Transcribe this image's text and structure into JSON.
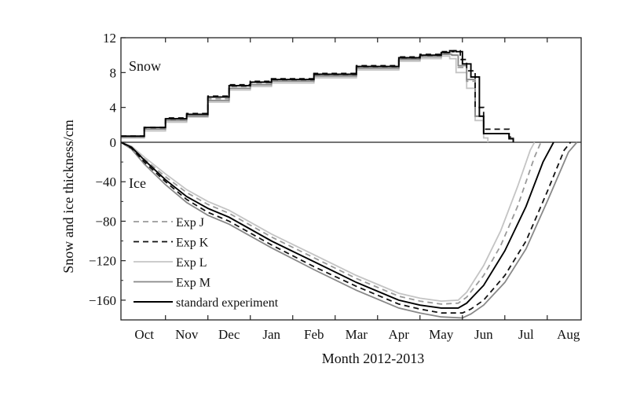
{
  "chart_data": {
    "type": "line",
    "title": "",
    "xlabel": "Month  2012-2013",
    "ylabel": "Snow and ice thickness/cm",
    "x_unit": "month index (Oct 2012 = 0, Aug 2013 = 10)",
    "xlim": [
      -0.55,
      10.3
    ],
    "ylim": [
      -180,
      12
    ],
    "x_ticks": [
      {
        "value": 0,
        "label": "Oct"
      },
      {
        "value": 1,
        "label": "Nov"
      },
      {
        "value": 2,
        "label": "Dec"
      },
      {
        "value": 3,
        "label": "Jan"
      },
      {
        "value": 4,
        "label": "Feb"
      },
      {
        "value": 5,
        "label": "Mar"
      },
      {
        "value": 6,
        "label": "Apr"
      },
      {
        "value": 7,
        "label": "May"
      },
      {
        "value": 8,
        "label": "Jun"
      },
      {
        "value": 9,
        "label": "Jul"
      },
      {
        "value": 10,
        "label": "Aug"
      }
    ],
    "y_ticks_snow": [
      0,
      4,
      8,
      12
    ],
    "y_ticks_ice": [
      -40,
      -80,
      -120,
      -160
    ],
    "annotations": [
      "Snow",
      "Ice"
    ],
    "legend_position": "lower-left",
    "series": [
      {
        "name": "Exp J",
        "style": "dashed",
        "color": "#999999",
        "snow": {
          "x": [
            -0.55,
            0,
            0.5,
            1,
            1.5,
            2,
            2.5,
            3,
            4,
            5,
            6,
            6.5,
            7,
            7.2,
            7.4,
            7.6,
            7.8,
            8,
            8.3,
            8.6,
            8.7
          ],
          "y": [
            0.7,
            1.6,
            2.6,
            3.2,
            5.0,
            6.4,
            6.8,
            7.1,
            7.7,
            8.6,
            9.6,
            9.9,
            10.2,
            10.0,
            8.6,
            7.0,
            3.0,
            1.0,
            1.0,
            0.5,
            0
          ]
        },
        "ice": {
          "x": [
            -0.55,
            -0.3,
            0,
            0.5,
            1,
            1.5,
            2,
            3,
            4,
            5,
            6,
            6.5,
            7,
            7.4,
            7.6,
            8,
            8.4,
            8.8,
            9.2,
            9.35
          ],
          "y": [
            0,
            -5,
            -17,
            -35,
            -51,
            -63,
            -72,
            -96,
            -117,
            -138,
            -156,
            -161,
            -164,
            -163,
            -157,
            -135,
            -105,
            -65,
            -15,
            0
          ]
        }
      },
      {
        "name": "Exp K",
        "style": "dashed",
        "color": "#111111",
        "snow": {
          "x": [
            -0.55,
            0,
            0.5,
            1,
            1.5,
            2,
            2.5,
            3,
            4,
            5,
            6,
            6.5,
            7,
            7.3,
            7.45,
            7.6,
            7.8,
            8,
            8.3,
            8.6,
            8.7
          ],
          "y": [
            0.7,
            1.7,
            2.8,
            3.3,
            5.3,
            6.6,
            7.0,
            7.3,
            7.9,
            8.8,
            9.8,
            10.1,
            10.4,
            10.5,
            9.5,
            8.2,
            4.0,
            1.5,
            1.5,
            0.6,
            0
          ]
        },
        "ice": {
          "x": [
            -0.55,
            -0.3,
            0,
            0.5,
            1,
            1.5,
            2,
            3,
            4,
            5,
            6,
            6.5,
            7,
            7.5,
            7.7,
            8,
            8.5,
            9,
            9.5,
            9.9,
            10.05
          ],
          "y": [
            0,
            -6,
            -20,
            -40,
            -58,
            -71,
            -80,
            -104,
            -126,
            -146,
            -164,
            -169,
            -173,
            -173,
            -169,
            -160,
            -135,
            -100,
            -50,
            -8,
            0
          ]
        }
      },
      {
        "name": "Exp L",
        "style": "solid",
        "color": "#c4c4c4",
        "snow": {
          "x": [
            -0.55,
            0,
            0.5,
            1,
            1.5,
            2,
            2.5,
            3,
            4,
            5,
            6,
            6.5,
            7,
            7.2,
            7.35,
            7.6,
            7.8,
            8,
            8.1
          ],
          "y": [
            0.5,
            1.3,
            2.3,
            2.9,
            4.6,
            6.0,
            6.4,
            6.8,
            7.4,
            8.3,
            9.3,
            9.6,
            9.9,
            9.6,
            8.0,
            6.2,
            2.5,
            0.5,
            0
          ]
        },
        "ice": {
          "x": [
            -0.55,
            -0.3,
            0,
            0.5,
            1,
            1.5,
            2,
            3,
            4,
            5,
            6,
            6.5,
            7,
            7.4,
            7.6,
            8,
            8.4,
            8.8,
            9.1,
            9.2
          ],
          "y": [
            0,
            -4,
            -15,
            -32,
            -48,
            -60,
            -69,
            -93,
            -114,
            -135,
            -153,
            -158,
            -161,
            -160,
            -152,
            -125,
            -90,
            -45,
            -8,
            0
          ]
        }
      },
      {
        "name": "Exp M",
        "style": "solid",
        "color": "#888888",
        "snow": {
          "x": [
            -0.55,
            0,
            0.5,
            1,
            1.5,
            2,
            2.5,
            3,
            4,
            5,
            6,
            6.5,
            7,
            7.25,
            7.4,
            7.6,
            7.8,
            8,
            8.3,
            8.6,
            8.7
          ],
          "y": [
            0.6,
            1.5,
            2.5,
            3.0,
            4.8,
            6.2,
            6.6,
            7.0,
            7.6,
            8.5,
            9.5,
            9.8,
            10.1,
            10.0,
            8.8,
            7.2,
            3.0,
            1.0,
            1.0,
            0.4,
            0
          ]
        },
        "ice": {
          "x": [
            -0.55,
            -0.3,
            0,
            0.5,
            1,
            1.5,
            2,
            3,
            4,
            5,
            6,
            6.5,
            7,
            7.5,
            7.7,
            8,
            8.5,
            9,
            9.5,
            10,
            10.2
          ],
          "y": [
            0,
            -7,
            -22,
            -43,
            -61,
            -74,
            -83,
            -107,
            -129,
            -150,
            -168,
            -173,
            -177,
            -178,
            -174,
            -165,
            -142,
            -108,
            -60,
            -10,
            0
          ]
        }
      },
      {
        "name": "standard experiment",
        "style": "solid",
        "color": "#000000",
        "snow": {
          "x": [
            -0.55,
            0,
            0.5,
            1,
            1.5,
            2,
            2.5,
            3,
            4,
            5,
            6,
            6.5,
            7,
            7.2,
            7.35,
            7.5,
            7.7,
            7.9,
            8.0,
            8.3,
            8.6,
            8.7
          ],
          "y": [
            0.7,
            1.7,
            2.7,
            3.2,
            5.2,
            6.5,
            6.9,
            7.2,
            7.8,
            8.7,
            9.7,
            10.0,
            10.3,
            10.5,
            10.4,
            9.0,
            7.5,
            3.0,
            1.0,
            1.0,
            0.4,
            0
          ]
        },
        "ice": {
          "x": [
            -0.55,
            -0.3,
            0,
            0.5,
            1,
            1.5,
            2,
            3,
            4,
            5,
            6,
            6.5,
            7,
            7.4,
            7.6,
            8,
            8.5,
            9,
            9.4,
            9.65
          ],
          "y": [
            0,
            -5,
            -18,
            -38,
            -55,
            -67,
            -76,
            -100,
            -121,
            -142,
            -160,
            -165,
            -168,
            -168,
            -163,
            -145,
            -110,
            -65,
            -20,
            0
          ]
        }
      }
    ]
  }
}
